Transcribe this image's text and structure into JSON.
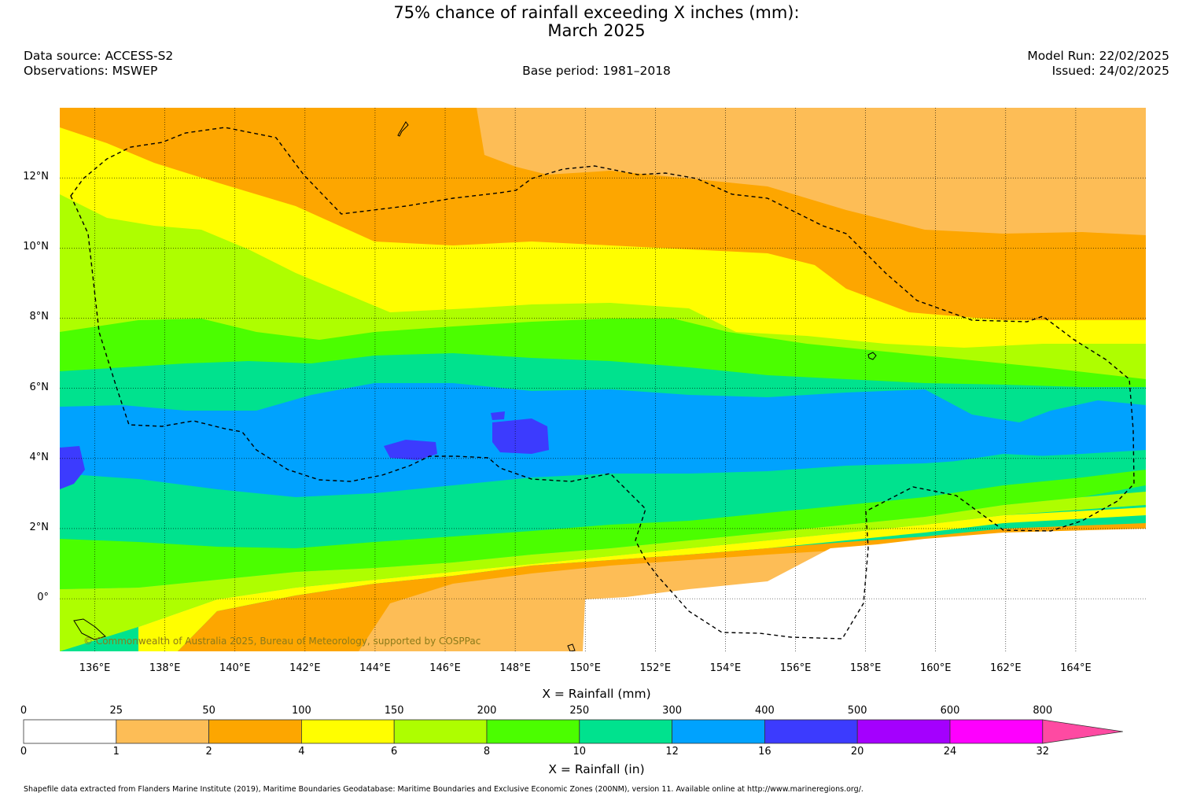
{
  "header": {
    "title_line1": "75% chance of rainfall exceeding X inches (mm):",
    "title_line2": "March 2025",
    "data_source": "Data source: ACCESS-S2",
    "observations": "Observations: MSWEP",
    "base_period": "Base period: 1981–2018",
    "model_run": "Model Run: 22/02/2025",
    "issued": "Issued: 24/02/2025"
  },
  "map": {
    "lat_labels": [
      "12°N",
      "10°N",
      "8°N",
      "6°N",
      "4°N",
      "2°N",
      "0°"
    ],
    "lat_values": [
      12,
      10,
      8,
      6,
      4,
      2,
      0
    ],
    "lon_labels": [
      "136°E",
      "138°E",
      "140°E",
      "142°E",
      "144°E",
      "146°E",
      "148°E",
      "150°E",
      "152°E",
      "154°E",
      "156°E",
      "158°E",
      "160°E",
      "162°E",
      "164°E"
    ],
    "lon_values": [
      136,
      138,
      140,
      142,
      144,
      146,
      148,
      150,
      152,
      154,
      156,
      158,
      160,
      162,
      164
    ],
    "lon_range": [
      135,
      166
    ],
    "lat_range": [
      -1.5,
      14
    ],
    "copyright": "© Commonwealth of Australia 2025, Bureau of Meteorology, supported by COSPPac",
    "boundary": "dashed EEZ outline",
    "colors": {
      "c0": "#ffffff",
      "c1": "#fdbd56",
      "c2": "#fda600",
      "c3": "#fffe00",
      "c4": "#aefe00",
      "c5": "#4bfe00",
      "c6": "#00e28e",
      "c7": "#00a2fe",
      "c8": "#3c3bfe",
      "c9": "#a400fe",
      "c10": "#fe00fe",
      "c11": "#fe4aa2"
    }
  },
  "colorbar": {
    "title_mm": "X = Rainfall (mm)",
    "title_in": "X = Rainfall (in)",
    "mm_ticks": [
      "0",
      "25",
      "50",
      "100",
      "150",
      "200",
      "250",
      "300",
      "400",
      "500",
      "600",
      "800"
    ],
    "in_ticks": [
      "0",
      "1",
      "2",
      "4",
      "6",
      "8",
      "10",
      "12",
      "16",
      "20",
      "24",
      "32"
    ],
    "colors": [
      "#ffffff",
      "#fdbd56",
      "#fda600",
      "#fffe00",
      "#aefe00",
      "#4bfe00",
      "#00e28e",
      "#00a2fe",
      "#3c3bfe",
      "#a400fe",
      "#fe00fe",
      "#fe4aa2"
    ]
  },
  "footer": {
    "shapefile_note": "Shapefile data extracted from Flanders Marine Institute (2019), Maritime Boundaries Geodatabase: Maritime Boundaries and Exclusive Economic Zones (200NM), version 11. Available online at http://www.marineregions.org/."
  }
}
